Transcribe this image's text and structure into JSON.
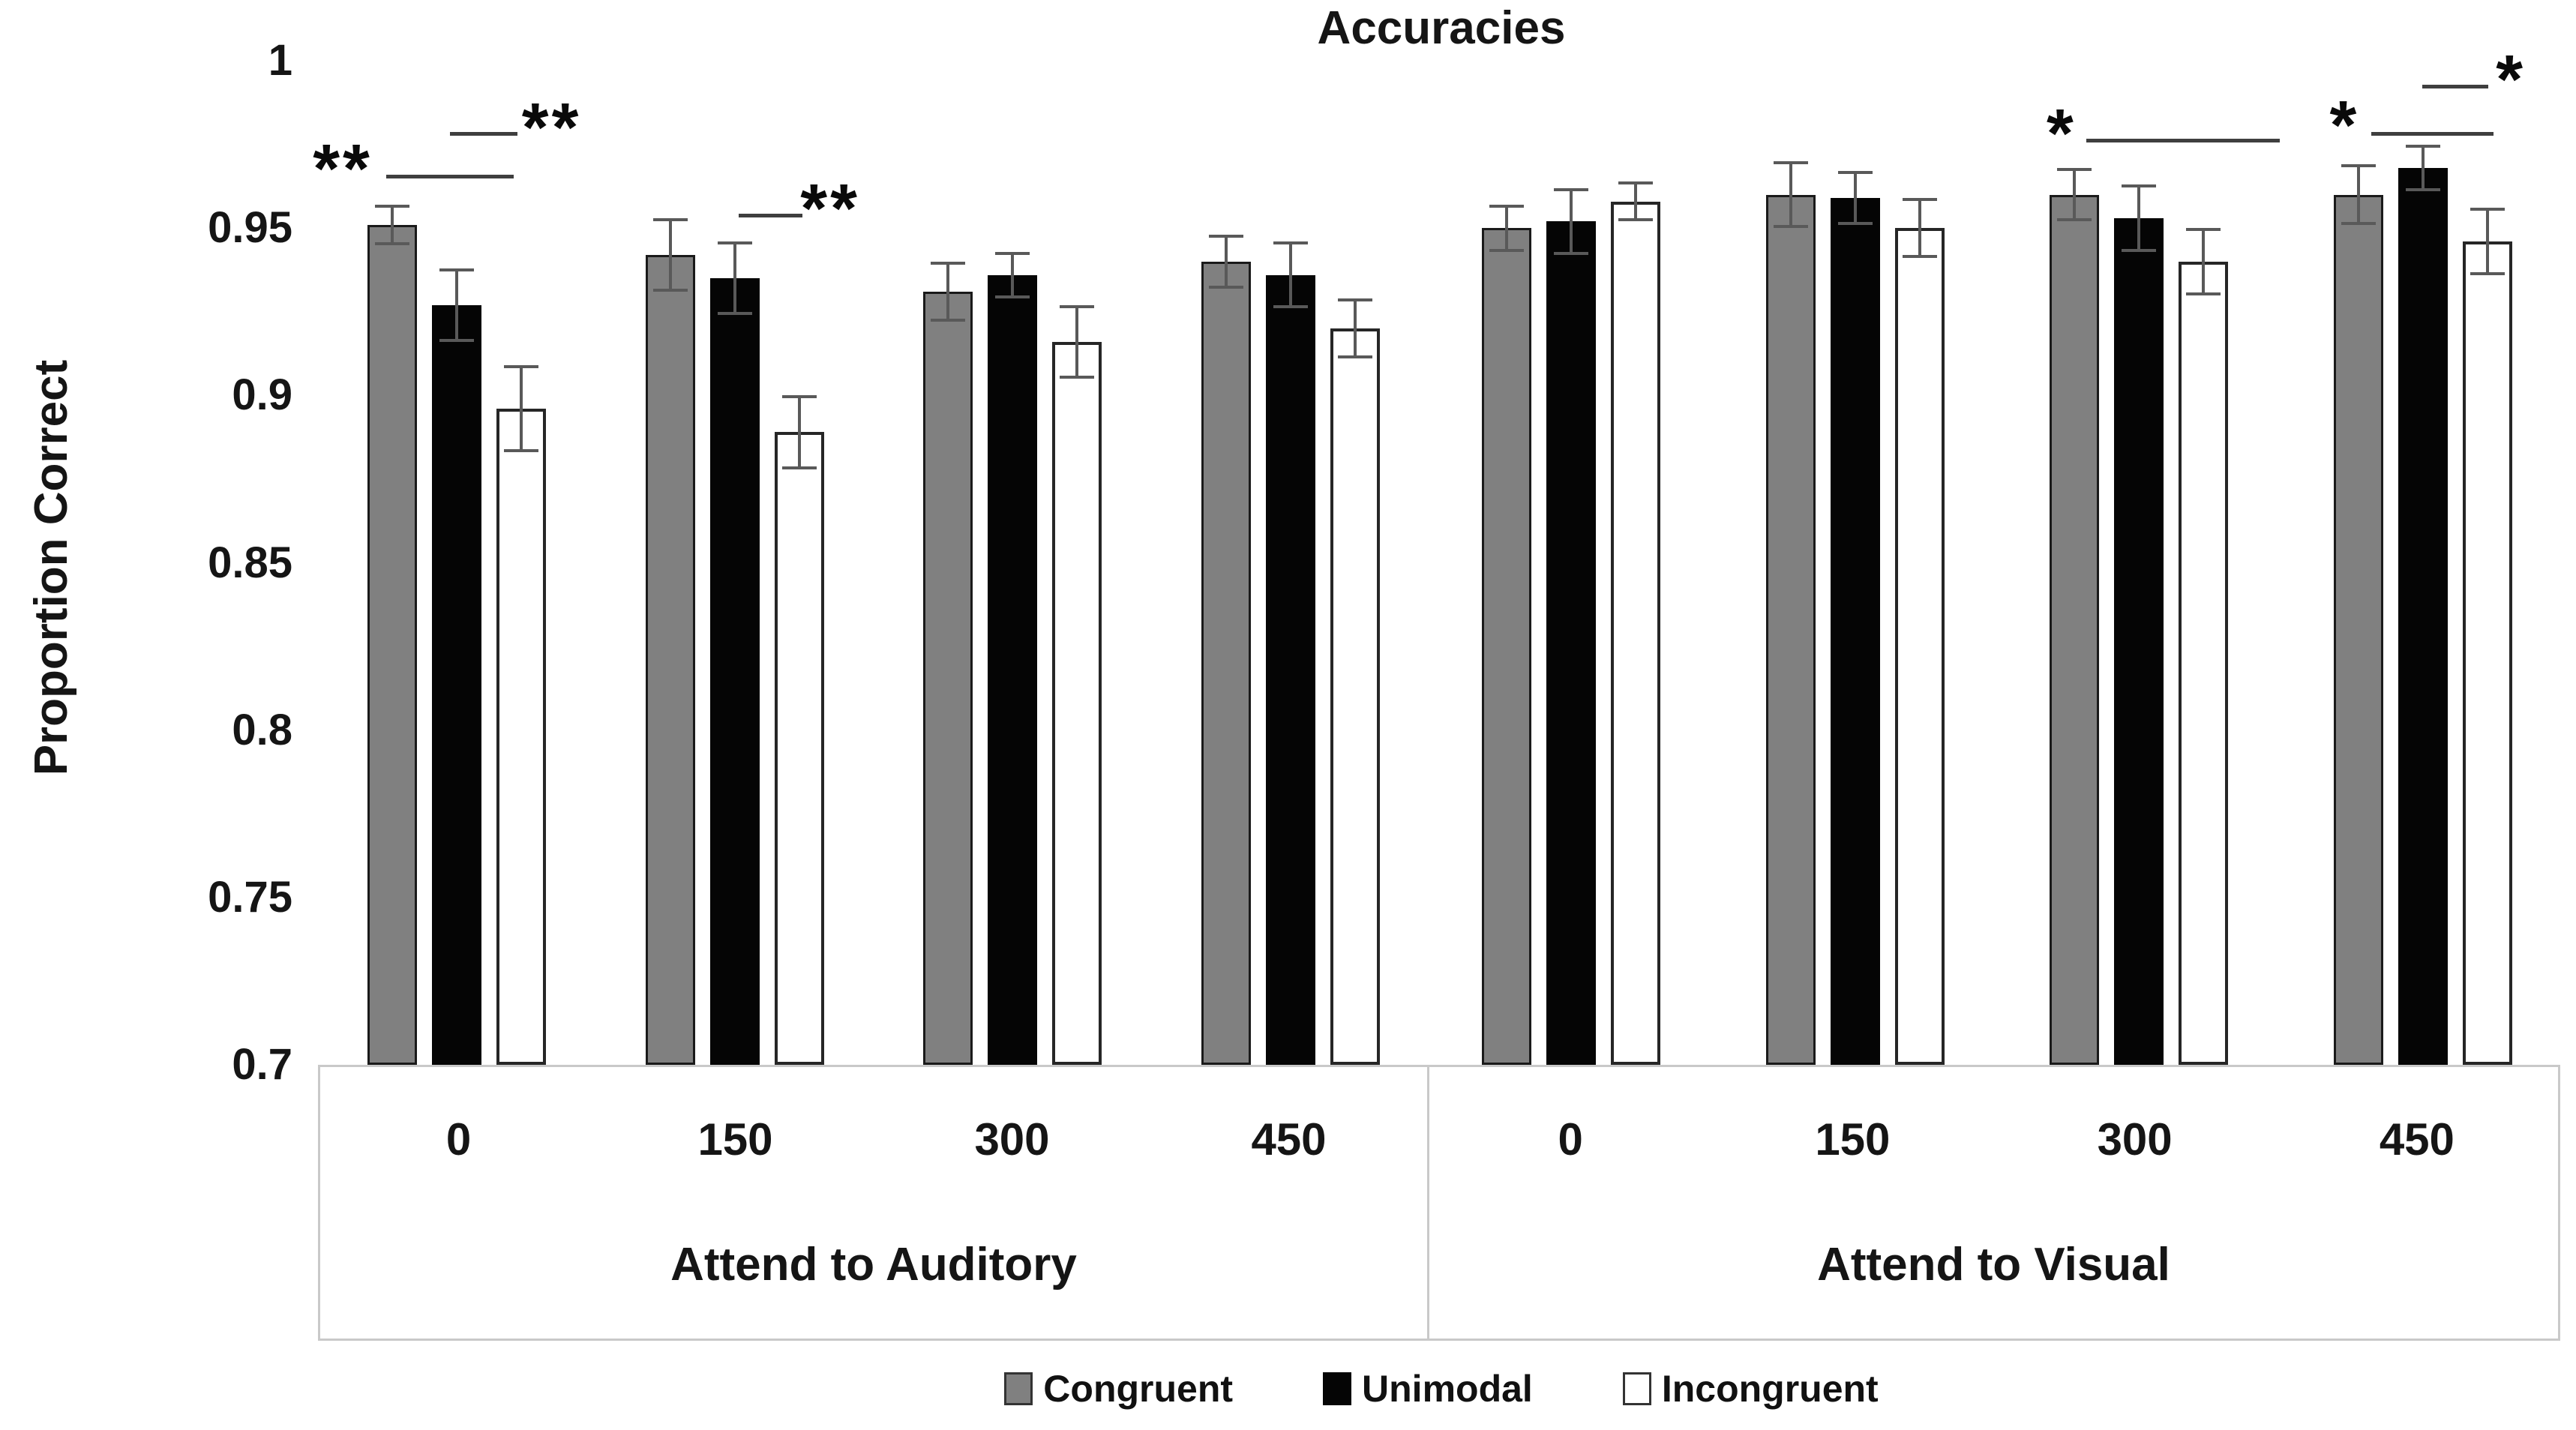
{
  "title": "Accuracies",
  "y_axis_label": "Proportion Correct",
  "ytick_labels": [
    "1",
    "0.95",
    "0.9",
    "0.85",
    "0.8",
    "0.75",
    "0.7"
  ],
  "chart_data": {
    "type": "bar",
    "title": "Accuracies",
    "xlabel": "",
    "ylabel": "Proportion Correct",
    "ylim": [
      0.7,
      1.0
    ],
    "yticks": [
      1,
      0.95,
      0.9,
      0.85,
      0.8,
      0.75,
      0.7
    ],
    "grid": false,
    "legend_position": "bottom",
    "categories": [
      "0",
      "150",
      "300",
      "450"
    ],
    "panels": [
      {
        "label": "Attend to Auditory",
        "series": [
          {
            "name": "Congruent",
            "values": [
              0.951,
              0.942,
              0.931,
              0.94
            ],
            "errors": [
              0.006,
              0.011,
              0.009,
              0.008
            ]
          },
          {
            "name": "Unimodal",
            "values": [
              0.927,
              0.935,
              0.936,
              0.936
            ],
            "errors": [
              0.011,
              0.011,
              0.007,
              0.01
            ]
          },
          {
            "name": "Incongruent",
            "values": [
              0.896,
              0.889,
              0.916,
              0.92
            ],
            "errors": [
              0.013,
              0.011,
              0.011,
              0.009
            ]
          }
        ]
      },
      {
        "label": "Attend to Visual",
        "series": [
          {
            "name": "Congruent",
            "values": [
              0.95,
              0.96,
              0.96,
              0.96
            ],
            "errors": [
              0.007,
              0.01,
              0.008,
              0.009
            ]
          },
          {
            "name": "Unimodal",
            "values": [
              0.952,
              0.959,
              0.953,
              0.968
            ],
            "errors": [
              0.01,
              0.008,
              0.01,
              0.007
            ]
          },
          {
            "name": "Incongruent",
            "values": [
              0.958,
              0.95,
              0.94,
              0.946
            ],
            "errors": [
              0.006,
              0.009,
              0.01,
              0.01
            ]
          }
        ]
      }
    ],
    "significance_markers": [
      {
        "stars": "**",
        "star_x": 1.1,
        "star_y": 11.1,
        "line_x1": 3.04,
        "line_x2": 8.71,
        "line_y": 11.35
      },
      {
        "stars": "**",
        "star_x": 10.4,
        "star_y": 7.0,
        "line_x1": 5.87,
        "line_x2": 8.88,
        "line_y": 7.1
      },
      {
        "stars": "**",
        "star_x": 22.8,
        "star_y": 15.1,
        "line_x1": 18.72,
        "line_x2": 21.56,
        "line_y": 15.24
      },
      {
        "stars": "*",
        "star_x": 77.6,
        "star_y": 7.6,
        "line_x1": 78.71,
        "line_x2": 87.32,
        "line_y": 7.8
      },
      {
        "stars": "*",
        "star_x": 90.2,
        "star_y": 6.8,
        "line_x1": 91.39,
        "line_x2": 96.83,
        "line_y": 7.1
      },
      {
        "stars": "*",
        "star_x": 97.6,
        "star_y": 2.2,
        "line_x1": 93.66,
        "line_x2": 96.6,
        "line_y": 2.4
      }
    ]
  },
  "legend": {
    "items": [
      {
        "label": "Congruent",
        "fill": "#808080",
        "border": "#333333"
      },
      {
        "label": "Unimodal",
        "fill": "#050505",
        "border": "#050505"
      },
      {
        "label": "Incongruent",
        "fill": "#ffffff",
        "border": "#333333"
      }
    ]
  },
  "colors": {
    "congruent_fill": "#808080",
    "unimodal_fill": "#050505",
    "incongruent_fill": "#ffffff",
    "bar_border": "#1a1a1a",
    "error_bar": "#595959",
    "sig_line": "#3f3f3f",
    "axis_box_border": "#c9c9c9"
  }
}
